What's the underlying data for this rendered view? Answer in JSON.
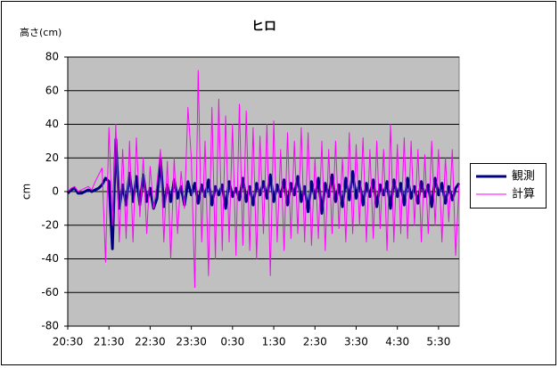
{
  "chart_data": {
    "type": "line",
    "title": "ヒロ",
    "unit_label": "高さ(cm)",
    "ylabel": "cm",
    "x": [
      "20:30",
      "20:35",
      "20:40",
      "20:45",
      "20:50",
      "20:55",
      "21:00",
      "21:05",
      "21:10",
      "21:15",
      "21:20",
      "21:25",
      "21:30",
      "21:35",
      "21:40",
      "21:45",
      "21:50",
      "21:55",
      "22:00",
      "22:05",
      "22:10",
      "22:15",
      "22:20",
      "22:25",
      "22:30",
      "22:35",
      "22:40",
      "22:45",
      "22:50",
      "22:55",
      "23:00",
      "23:05",
      "23:10",
      "23:15",
      "23:20",
      "23:25",
      "23:30",
      "23:35",
      "23:40",
      "23:45",
      "23:50",
      "23:55",
      "0:00",
      "0:05",
      "0:10",
      "0:15",
      "0:20",
      "0:25",
      "0:30",
      "0:35",
      "0:40",
      "0:45",
      "0:50",
      "0:55",
      "1:00",
      "1:05",
      "1:10",
      "1:15",
      "1:20",
      "1:25",
      "1:30",
      "1:35",
      "1:40",
      "1:45",
      "1:50",
      "1:55",
      "2:00",
      "2:05",
      "2:10",
      "2:15",
      "2:20",
      "2:25",
      "2:30",
      "2:35",
      "2:40",
      "2:45",
      "2:50",
      "2:55",
      "3:00",
      "3:05",
      "3:10",
      "3:15",
      "3:20",
      "3:25",
      "3:30",
      "3:35",
      "3:40",
      "3:45",
      "3:50",
      "3:55",
      "4:00",
      "4:05",
      "4:10",
      "4:15",
      "4:20",
      "4:25",
      "4:30",
      "4:35",
      "4:40",
      "4:45",
      "4:50",
      "4:55",
      "5:00",
      "5:05",
      "5:10",
      "5:15",
      "5:20",
      "5:25",
      "5:30",
      "5:35",
      "5:40",
      "5:45",
      "5:50",
      "5:55",
      "6:00"
    ],
    "series": [
      {
        "name": "観測",
        "color": "#000080",
        "width": 3,
        "values": [
          -1,
          1,
          2,
          -1,
          -1,
          0,
          1,
          0,
          1,
          2,
          4,
          8,
          6,
          -34,
          31,
          -10,
          4,
          -8,
          11,
          -6,
          9,
          -8,
          10,
          -6,
          2,
          -10,
          -4,
          19,
          -9,
          4,
          -6,
          7,
          -4,
          3,
          -8,
          6,
          -2,
          5,
          -7,
          4,
          -3,
          7,
          -8,
          3,
          -2,
          4,
          -10,
          6,
          -3,
          2,
          -5,
          8,
          -6,
          3,
          -8,
          5,
          -2,
          6,
          -4,
          10,
          -6,
          4,
          -3,
          7,
          -8,
          5,
          -2,
          9,
          -6,
          3,
          -12,
          6,
          -4,
          8,
          -13,
          5,
          -3,
          10,
          -6,
          4,
          -9,
          8,
          -5,
          12,
          -4,
          6,
          -8,
          5,
          -3,
          7,
          -9,
          4,
          -2,
          6,
          -10,
          7,
          -3,
          5,
          -8,
          8,
          -4,
          3,
          -7,
          6,
          -3,
          4,
          -9,
          8,
          -2,
          5,
          -7,
          3,
          -5,
          2,
          5
        ]
      },
      {
        "name": "計算",
        "color": "#ff00ff",
        "width": 1,
        "values": [
          0,
          2,
          3,
          0,
          1,
          2,
          3,
          1,
          6,
          10,
          14,
          -42,
          38,
          -20,
          40,
          -30,
          25,
          -28,
          30,
          -30,
          32,
          -15,
          20,
          -25,
          15,
          -10,
          5,
          25,
          -30,
          18,
          -40,
          20,
          -25,
          12,
          -10,
          50,
          20,
          -57,
          72,
          -30,
          30,
          -50,
          50,
          -40,
          55,
          -35,
          45,
          -30,
          40,
          -38,
          52,
          -32,
          48,
          -35,
          38,
          -40,
          33,
          -25,
          40,
          -50,
          42,
          -30,
          25,
          -35,
          35,
          -28,
          30,
          -25,
          38,
          -30,
          35,
          -32,
          20,
          -28,
          30,
          -35,
          25,
          -25,
          30,
          -22,
          20,
          -30,
          35,
          -25,
          28,
          -20,
          32,
          -30,
          25,
          -28,
          30,
          -22,
          25,
          -35,
          40,
          -30,
          28,
          -25,
          32,
          -28,
          30,
          -20,
          25,
          -30,
          22,
          -25,
          30,
          -20,
          25,
          -30,
          20,
          -18,
          25,
          -38,
          5
        ]
      }
    ],
    "xlim": [
      "20:30",
      "6:00"
    ],
    "xticks": [
      "20:30",
      "21:30",
      "22:30",
      "23:30",
      "0:30",
      "1:30",
      "2:30",
      "3:30",
      "4:30",
      "5:30"
    ],
    "ylim": [
      -80,
      80
    ],
    "yticks": [
      -80,
      -60,
      -40,
      -20,
      0,
      20,
      40,
      60,
      80
    ],
    "grid": true,
    "legend": "right"
  }
}
